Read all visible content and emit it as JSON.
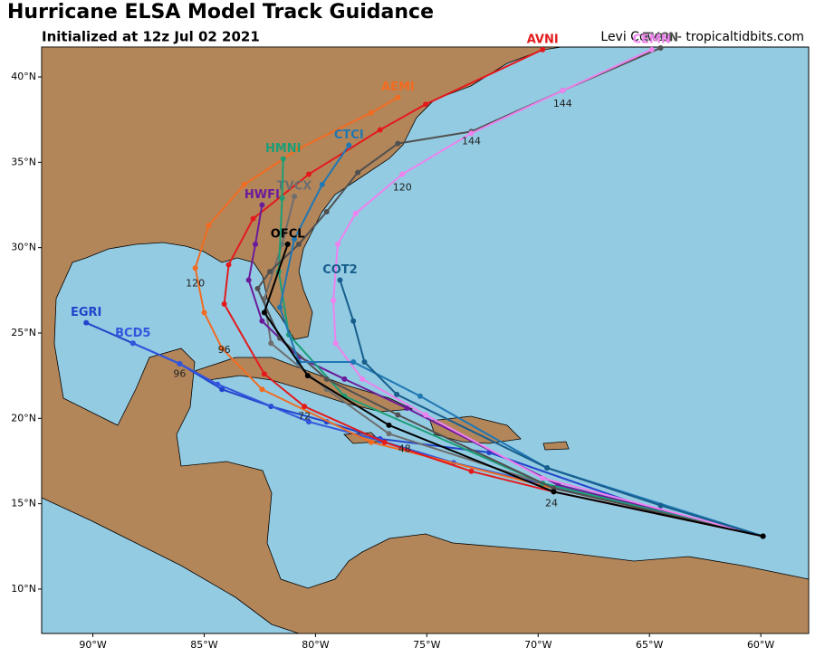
{
  "header": {
    "title": "Hurricane ELSA Model Track Guidance",
    "subtitle": "Initialized at 12z Jul 02 2021",
    "credit": "Levi Cowan - tropicaltidbits.com"
  },
  "map": {
    "xlim": [
      -92.3,
      -57.85
    ],
    "ylim": [
      7.4,
      41.75
    ],
    "lat_ticks": [
      {
        "value": 10,
        "label": "10°N"
      },
      {
        "value": 15,
        "label": "15°N"
      },
      {
        "value": 20,
        "label": "20°N"
      },
      {
        "value": 25,
        "label": "25°N"
      },
      {
        "value": 30,
        "label": "30°N"
      },
      {
        "value": 35,
        "label": "35°N"
      },
      {
        "value": 40,
        "label": "40°N"
      }
    ],
    "lon_ticks": [
      {
        "value": -90,
        "label": "90°W"
      },
      {
        "value": -85,
        "label": "85°W"
      },
      {
        "value": -80,
        "label": "80°W"
      },
      {
        "value": -75,
        "label": "75°W"
      },
      {
        "value": -70,
        "label": "70°W"
      },
      {
        "value": -65,
        "label": "65°W"
      },
      {
        "value": -60,
        "label": "60°W"
      }
    ],
    "tracks": [
      {
        "name": "EGRI",
        "color": "#2244cc",
        "lon": [
          -59.9,
          -64.5,
          -72.2,
          -77.1,
          -79.5,
          -82.0,
          -84.2,
          -86.1,
          -88.2,
          -90.3
        ],
        "lat": [
          13.1,
          14.5,
          18.0,
          18.8,
          19.8,
          20.7,
          21.7,
          23.2,
          24.4,
          25.6
        ]
      },
      {
        "name": "BCD5",
        "color": "#3355dd",
        "lon": [
          -59.9,
          -64.5,
          -73.8,
          -77.1,
          -80.3,
          -84.4,
          -86.1,
          -88.2
        ],
        "lat": [
          13.1,
          14.5,
          17.4,
          18.7,
          19.8,
          22.0,
          23.2,
          24.4
        ]
      },
      {
        "name": "AEMI",
        "color": "#f26b21",
        "lon": [
          -59.9,
          -69.3,
          -77.5,
          -82.4,
          -84.2,
          -85.0,
          -85.4,
          -84.8,
          -83.2,
          -80.75,
          -77.5,
          -76.3
        ],
        "lat": [
          13.1,
          15.9,
          18.6,
          21.7,
          24.1,
          26.2,
          28.8,
          31.3,
          33.7,
          35.8,
          37.9,
          38.8
        ]
      },
      {
        "name": "AVNI",
        "color": "#e31a1c",
        "lon": [
          -59.9,
          -69.3,
          -73.0,
          -76.9,
          -80.5,
          -82.3,
          -84.1,
          -83.9,
          -82.8,
          -80.3,
          -77.1,
          -75.05,
          -69.8
        ],
        "lat": [
          13.1,
          15.7,
          16.9,
          18.6,
          20.7,
          22.6,
          26.7,
          29.0,
          31.7,
          34.3,
          36.9,
          38.4,
          41.6
        ]
      },
      {
        "name": "TVCX",
        "color": "#6e6e6e",
        "lon": [
          -59.9,
          -69.8,
          -76.7,
          -79.5,
          -82.0,
          -82.3,
          -81.5,
          -80.95
        ],
        "lat": [
          13.1,
          16.2,
          19.1,
          21.7,
          24.4,
          27.0,
          30.2,
          33.0
        ]
      },
      {
        "name": "HWFI",
        "color": "#6a1b9a",
        "lon": [
          -59.9,
          -64.5,
          -69.1,
          -75.9,
          -78.7,
          -80.75,
          -82.4,
          -83.0,
          -82.7,
          -82.4
        ],
        "lat": [
          13.1,
          14.6,
          16.1,
          20.6,
          22.3,
          23.6,
          25.7,
          28.1,
          30.2,
          32.5
        ]
      },
      {
        "name": "HMNI",
        "color": "#1b9e77",
        "lon": [
          -59.9,
          -69.8,
          -78.7,
          -81.2,
          -81.65,
          -81.5,
          -81.45
        ],
        "lat": [
          13.1,
          16.2,
          21.3,
          24.9,
          28.6,
          32.9,
          35.2
        ]
      },
      {
        "name": "TVCN",
        "color": "#505050",
        "lon": [
          -59.9,
          -69.3,
          -76.3,
          -79.5,
          -81.6,
          -82.6,
          -82.05,
          -80.75,
          -79.5,
          -78.1,
          -76.3,
          -73.0,
          -68.9,
          -64.5
        ],
        "lat": [
          13.1,
          15.9,
          20.2,
          22.3,
          24.7,
          27.6,
          28.6,
          30.2,
          32.1,
          34.4,
          36.1,
          36.8,
          39.2,
          41.7
        ]
      },
      {
        "name": "CEMN",
        "color": "#ee82ee",
        "lon": [
          -59.9,
          -69.8,
          -75.05,
          -77.9,
          -79.1,
          -79.2,
          -79.0,
          -78.2,
          -76.1,
          -73.0,
          -68.9,
          -64.9
        ],
        "lat": [
          13.1,
          16.5,
          20.2,
          22.3,
          24.4,
          26.9,
          30.2,
          32.0,
          34.3,
          36.7,
          39.2,
          41.6
        ]
      },
      {
        "name": "CTCI",
        "color": "#1f77b4",
        "lon": [
          -59.9,
          -69.6,
          -75.3,
          -78.3,
          -80.75,
          -81.6,
          -80.95,
          -79.7,
          -78.5
        ],
        "lat": [
          13.1,
          17.1,
          21.3,
          23.3,
          23.3,
          26.5,
          30.5,
          33.7,
          36.0
        ]
      },
      {
        "name": "COT2",
        "color": "#175e8c",
        "lon": [
          -59.9,
          -64.5,
          -69.6,
          -76.35,
          -77.8,
          -78.3,
          -78.9
        ],
        "lat": [
          13.1,
          14.9,
          17.1,
          21.4,
          23.3,
          25.7,
          28.1
        ]
      },
      {
        "name": "OFCL",
        "color": "#000000",
        "lon": [
          -59.9,
          -69.3,
          -76.7,
          -80.35,
          -82.3,
          -81.25
        ],
        "lat": [
          13.1,
          15.7,
          19.6,
          22.5,
          26.2,
          30.2
        ]
      }
    ],
    "hour_labels": [
      {
        "label": "24",
        "lon": -69.4,
        "lat": 15.0
      },
      {
        "label": "48",
        "lon": -76.0,
        "lat": 18.2
      },
      {
        "label": "72",
        "lon": -80.5,
        "lat": 20.1
      },
      {
        "label": "96",
        "lon": -84.1,
        "lat": 24.0
      },
      {
        "label": "120",
        "lon": -85.4,
        "lat": 27.9
      },
      {
        "label": "144",
        "lon": -68.9,
        "lat": 38.4
      },
      {
        "label": "144",
        "lon": -73.0,
        "lat": 36.2
      },
      {
        "label": "120",
        "lon": -76.1,
        "lat": 33.5
      },
      {
        "label": "96",
        "lon": -86.1,
        "lat": 22.6
      }
    ]
  }
}
